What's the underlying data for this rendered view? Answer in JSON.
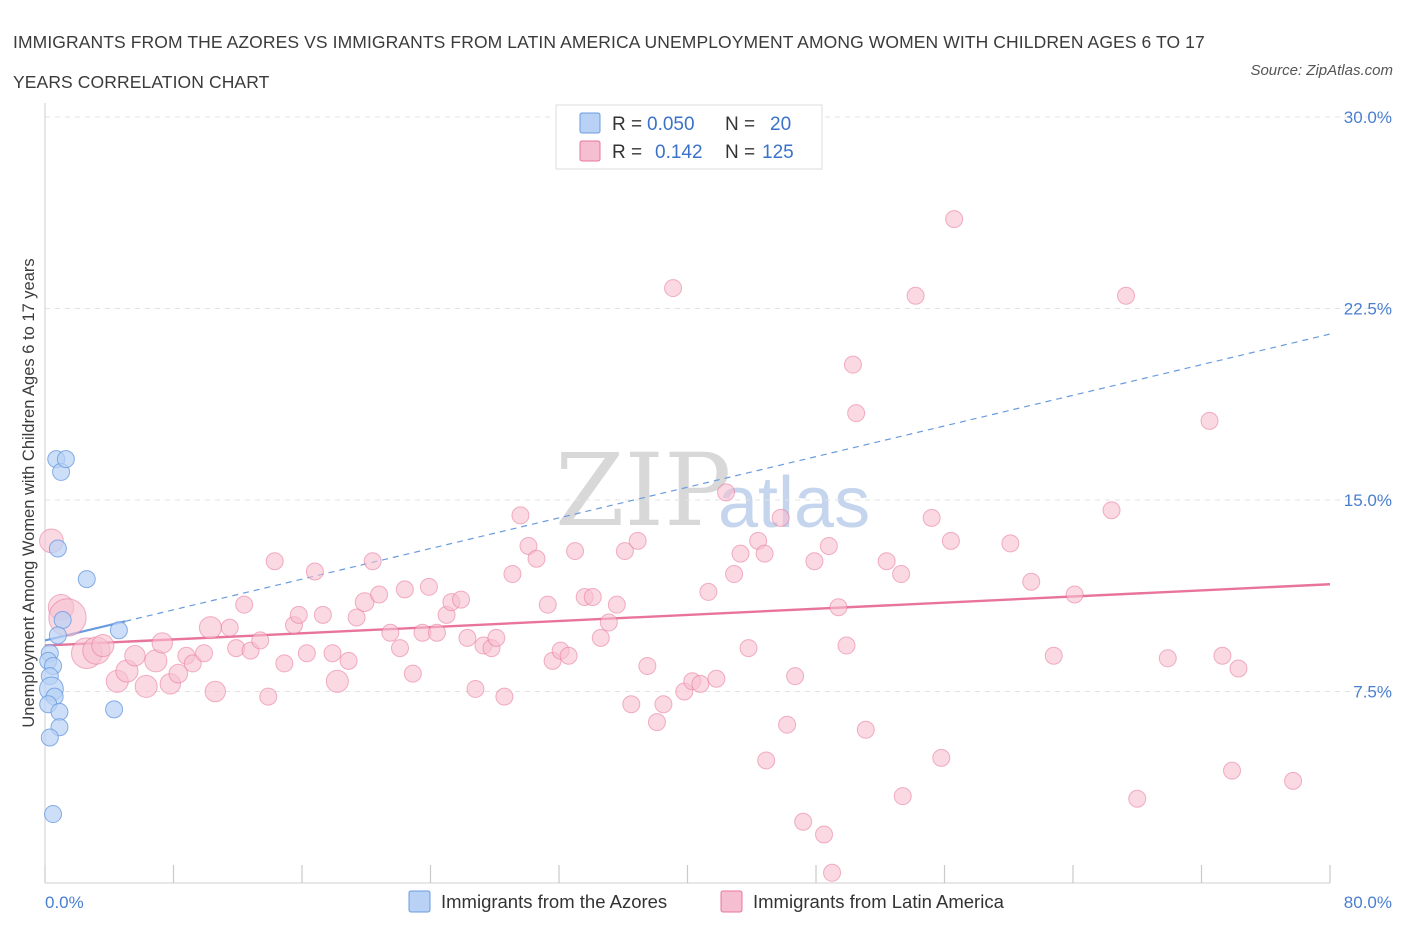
{
  "header": {
    "title": "IMMIGRANTS FROM THE AZORES VS IMMIGRANTS FROM LATIN AMERICA UNEMPLOYMENT AMONG WOMEN WITH CHILDREN AGES 6 TO 17 YEARS CORRELATION CHART",
    "source": "Source: ZipAtlas.com"
  },
  "watermark": {
    "zip": "ZIP",
    "atlas": "atlas"
  },
  "colors": {
    "azores": "#6a9be0",
    "azores_fill": "#b8d1f5",
    "latin": "#e8749b",
    "latin_fill": "#f6bfd1",
    "tick": "#4a7fd0"
  },
  "legend": {
    "azores": {
      "r_label": "R =",
      "r_value": "0.050",
      "n_label": "N =",
      "n_value": "20"
    },
    "latin": {
      "r_label": "R =",
      "r_value": "0.142",
      "n_label": "N =",
      "n_value": "125"
    }
  },
  "chart_data": {
    "type": "scatter",
    "title": "IMMIGRANTS FROM THE AZORES VS IMMIGRANTS FROM LATIN AMERICA UNEMPLOYMENT AMONG WOMEN WITH CHILDREN AGES 6 TO 17 YEARS CORRELATION CHART",
    "xlabel": "",
    "ylabel": "Unemployment Among Women with Children Ages 6 to 17 years",
    "xlim": [
      0,
      80
    ],
    "ylim": [
      0,
      30
    ],
    "x_tick_labels": [
      "0.0%",
      "80.0%"
    ],
    "y_ticks": [
      7.5,
      15.0,
      22.5,
      30.0
    ],
    "y_tick_labels": [
      "7.5%",
      "15.0%",
      "22.5%",
      "30.0%"
    ],
    "grid": true,
    "legend_position": "top-center",
    "series": [
      {
        "name": "Immigrants from the Azores",
        "R": 0.05,
        "N": 20,
        "trend": {
          "x": [
            0,
            80
          ],
          "y": [
            9.5,
            21.5
          ],
          "solid_until_x": 5
        },
        "points": [
          {
            "x": 0.7,
            "y": 16.6,
            "s": 1
          },
          {
            "x": 1.0,
            "y": 16.1,
            "s": 1
          },
          {
            "x": 1.3,
            "y": 16.6,
            "s": 1
          },
          {
            "x": 0.8,
            "y": 13.1,
            "s": 1
          },
          {
            "x": 2.6,
            "y": 11.9,
            "s": 1
          },
          {
            "x": 1.1,
            "y": 10.3,
            "s": 1
          },
          {
            "x": 4.6,
            "y": 9.9,
            "s": 1
          },
          {
            "x": 0.8,
            "y": 9.7,
            "s": 1
          },
          {
            "x": 0.3,
            "y": 9.0,
            "s": 1
          },
          {
            "x": 0.2,
            "y": 8.7,
            "s": 1
          },
          {
            "x": 0.5,
            "y": 8.5,
            "s": 1
          },
          {
            "x": 0.3,
            "y": 8.1,
            "s": 1
          },
          {
            "x": 0.4,
            "y": 7.6,
            "s": 1.4
          },
          {
            "x": 0.6,
            "y": 7.3,
            "s": 1
          },
          {
            "x": 0.2,
            "y": 7.0,
            "s": 1
          },
          {
            "x": 0.9,
            "y": 6.7,
            "s": 1
          },
          {
            "x": 4.3,
            "y": 6.8,
            "s": 1
          },
          {
            "x": 0.9,
            "y": 6.1,
            "s": 1
          },
          {
            "x": 0.3,
            "y": 5.7,
            "s": 1
          },
          {
            "x": 0.5,
            "y": 2.7,
            "s": 1
          }
        ]
      },
      {
        "name": "Immigrants from Latin America",
        "R": 0.142,
        "N": 125,
        "trend": {
          "x": [
            0,
            80
          ],
          "y": [
            9.3,
            11.7
          ]
        },
        "points": [
          {
            "x": 0.4,
            "y": 13.4,
            "s": 1.4
          },
          {
            "x": 1.0,
            "y": 10.8,
            "s": 1.5
          },
          {
            "x": 1.4,
            "y": 10.4,
            "s": 2.2
          },
          {
            "x": 2.6,
            "y": 9.0,
            "s": 1.8
          },
          {
            "x": 3.2,
            "y": 9.1,
            "s": 1.6
          },
          {
            "x": 3.6,
            "y": 9.3,
            "s": 1.3
          },
          {
            "x": 4.5,
            "y": 7.9,
            "s": 1.3
          },
          {
            "x": 5.1,
            "y": 8.3,
            "s": 1.3
          },
          {
            "x": 5.6,
            "y": 8.9,
            "s": 1.2
          },
          {
            "x": 6.3,
            "y": 7.7,
            "s": 1.3
          },
          {
            "x": 6.9,
            "y": 8.7,
            "s": 1.3
          },
          {
            "x": 7.3,
            "y": 9.4,
            "s": 1.2
          },
          {
            "x": 7.8,
            "y": 7.8,
            "s": 1.2
          },
          {
            "x": 8.3,
            "y": 8.2,
            "s": 1.1
          },
          {
            "x": 8.8,
            "y": 8.9,
            "s": 1
          },
          {
            "x": 9.2,
            "y": 8.6,
            "s": 1
          },
          {
            "x": 9.9,
            "y": 9.0,
            "s": 1
          },
          {
            "x": 10.3,
            "y": 10.0,
            "s": 1.3
          },
          {
            "x": 10.6,
            "y": 7.5,
            "s": 1.2
          },
          {
            "x": 11.5,
            "y": 10.0,
            "s": 1
          },
          {
            "x": 11.9,
            "y": 9.2,
            "s": 1
          },
          {
            "x": 12.4,
            "y": 10.9,
            "s": 1
          },
          {
            "x": 12.8,
            "y": 9.1,
            "s": 1
          },
          {
            "x": 13.4,
            "y": 9.5,
            "s": 1
          },
          {
            "x": 13.9,
            "y": 7.3,
            "s": 1
          },
          {
            "x": 14.3,
            "y": 12.6,
            "s": 1
          },
          {
            "x": 14.9,
            "y": 8.6,
            "s": 1
          },
          {
            "x": 15.5,
            "y": 10.1,
            "s": 1
          },
          {
            "x": 15.8,
            "y": 10.5,
            "s": 1
          },
          {
            "x": 16.3,
            "y": 9.0,
            "s": 1
          },
          {
            "x": 16.8,
            "y": 12.2,
            "s": 1
          },
          {
            "x": 17.3,
            "y": 10.5,
            "s": 1
          },
          {
            "x": 17.9,
            "y": 9.0,
            "s": 1
          },
          {
            "x": 18.2,
            "y": 7.9,
            "s": 1.3
          },
          {
            "x": 18.9,
            "y": 8.7,
            "s": 1
          },
          {
            "x": 19.4,
            "y": 10.4,
            "s": 1
          },
          {
            "x": 19.9,
            "y": 11.0,
            "s": 1.1
          },
          {
            "x": 20.4,
            "y": 12.6,
            "s": 1
          },
          {
            "x": 20.8,
            "y": 11.3,
            "s": 1
          },
          {
            "x": 21.5,
            "y": 9.8,
            "s": 1
          },
          {
            "x": 22.1,
            "y": 9.2,
            "s": 1
          },
          {
            "x": 22.4,
            "y": 11.5,
            "s": 1
          },
          {
            "x": 22.9,
            "y": 8.2,
            "s": 1
          },
          {
            "x": 23.5,
            "y": 9.8,
            "s": 1
          },
          {
            "x": 23.9,
            "y": 11.6,
            "s": 1
          },
          {
            "x": 24.4,
            "y": 9.8,
            "s": 1
          },
          {
            "x": 25.0,
            "y": 10.5,
            "s": 1
          },
          {
            "x": 25.3,
            "y": 11.0,
            "s": 1
          },
          {
            "x": 25.9,
            "y": 11.1,
            "s": 1
          },
          {
            "x": 26.3,
            "y": 9.6,
            "s": 1
          },
          {
            "x": 26.8,
            "y": 7.6,
            "s": 1
          },
          {
            "x": 27.3,
            "y": 9.3,
            "s": 1
          },
          {
            "x": 27.8,
            "y": 9.2,
            "s": 1
          },
          {
            "x": 28.1,
            "y": 9.6,
            "s": 1
          },
          {
            "x": 28.6,
            "y": 7.3,
            "s": 1
          },
          {
            "x": 29.1,
            "y": 12.1,
            "s": 1
          },
          {
            "x": 29.6,
            "y": 14.4,
            "s": 1
          },
          {
            "x": 30.1,
            "y": 13.2,
            "s": 1
          },
          {
            "x": 30.6,
            "y": 12.7,
            "s": 1
          },
          {
            "x": 31.3,
            "y": 10.9,
            "s": 1
          },
          {
            "x": 31.6,
            "y": 8.7,
            "s": 1
          },
          {
            "x": 32.1,
            "y": 9.1,
            "s": 1
          },
          {
            "x": 32.6,
            "y": 8.9,
            "s": 1
          },
          {
            "x": 33.0,
            "y": 13.0,
            "s": 1
          },
          {
            "x": 33.6,
            "y": 11.2,
            "s": 1
          },
          {
            "x": 34.1,
            "y": 11.2,
            "s": 1
          },
          {
            "x": 34.6,
            "y": 9.6,
            "s": 1
          },
          {
            "x": 35.1,
            "y": 10.2,
            "s": 1
          },
          {
            "x": 35.6,
            "y": 10.9,
            "s": 1
          },
          {
            "x": 36.1,
            "y": 13.0,
            "s": 1
          },
          {
            "x": 36.5,
            "y": 7.0,
            "s": 1
          },
          {
            "x": 36.9,
            "y": 13.4,
            "s": 1
          },
          {
            "x": 37.5,
            "y": 8.5,
            "s": 1
          },
          {
            "x": 38.1,
            "y": 6.3,
            "s": 1
          },
          {
            "x": 38.5,
            "y": 7.0,
            "s": 1
          },
          {
            "x": 39.1,
            "y": 23.3,
            "s": 1
          },
          {
            "x": 39.8,
            "y": 7.5,
            "s": 1
          },
          {
            "x": 40.3,
            "y": 7.9,
            "s": 1
          },
          {
            "x": 40.8,
            "y": 7.8,
            "s": 1
          },
          {
            "x": 41.3,
            "y": 11.4,
            "s": 1
          },
          {
            "x": 41.8,
            "y": 8.0,
            "s": 1
          },
          {
            "x": 42.4,
            "y": 15.3,
            "s": 1
          },
          {
            "x": 42.9,
            "y": 12.1,
            "s": 1
          },
          {
            "x": 43.3,
            "y": 12.9,
            "s": 1
          },
          {
            "x": 43.8,
            "y": 9.2,
            "s": 1
          },
          {
            "x": 44.4,
            "y": 13.4,
            "s": 1
          },
          {
            "x": 44.8,
            "y": 12.9,
            "s": 1
          },
          {
            "x": 44.9,
            "y": 4.8,
            "s": 1
          },
          {
            "x": 45.8,
            "y": 14.3,
            "s": 1
          },
          {
            "x": 46.2,
            "y": 6.2,
            "s": 1
          },
          {
            "x": 46.7,
            "y": 8.1,
            "s": 1
          },
          {
            "x": 47.2,
            "y": 2.4,
            "s": 1
          },
          {
            "x": 47.9,
            "y": 12.6,
            "s": 1
          },
          {
            "x": 48.5,
            "y": 1.9,
            "s": 1
          },
          {
            "x": 48.8,
            "y": 13.2,
            "s": 1
          },
          {
            "x": 49.0,
            "y": 0.4,
            "s": 1
          },
          {
            "x": 49.4,
            "y": 10.8,
            "s": 1
          },
          {
            "x": 49.9,
            "y": 9.3,
            "s": 1
          },
          {
            "x": 50.5,
            "y": 18.4,
            "s": 1
          },
          {
            "x": 50.3,
            "y": 20.3,
            "s": 1
          },
          {
            "x": 51.1,
            "y": 6.0,
            "s": 1
          },
          {
            "x": 52.4,
            "y": 12.6,
            "s": 1
          },
          {
            "x": 53.3,
            "y": 12.1,
            "s": 1
          },
          {
            "x": 53.4,
            "y": 3.4,
            "s": 1
          },
          {
            "x": 54.2,
            "y": 23.0,
            "s": 1
          },
          {
            "x": 55.2,
            "y": 14.3,
            "s": 1
          },
          {
            "x": 55.8,
            "y": 4.9,
            "s": 1
          },
          {
            "x": 56.4,
            "y": 13.4,
            "s": 1
          },
          {
            "x": 56.6,
            "y": 26.0,
            "s": 1
          },
          {
            "x": 60.1,
            "y": 13.3,
            "s": 1
          },
          {
            "x": 61.4,
            "y": 11.8,
            "s": 1
          },
          {
            "x": 62.8,
            "y": 8.9,
            "s": 1
          },
          {
            "x": 64.1,
            "y": 11.3,
            "s": 1
          },
          {
            "x": 66.4,
            "y": 14.6,
            "s": 1
          },
          {
            "x": 67.3,
            "y": 23.0,
            "s": 1
          },
          {
            "x": 68.0,
            "y": 3.3,
            "s": 1
          },
          {
            "x": 69.9,
            "y": 8.8,
            "s": 1
          },
          {
            "x": 72.5,
            "y": 18.1,
            "s": 1
          },
          {
            "x": 73.3,
            "y": 8.9,
            "s": 1
          },
          {
            "x": 73.9,
            "y": 4.4,
            "s": 1
          },
          {
            "x": 74.3,
            "y": 8.4,
            "s": 1
          },
          {
            "x": 77.7,
            "y": 4.0,
            "s": 1
          }
        ]
      }
    ]
  },
  "bottom_legend": {
    "azores_label": "Immigrants from the Azores",
    "latin_label": "Immigrants from Latin America"
  }
}
